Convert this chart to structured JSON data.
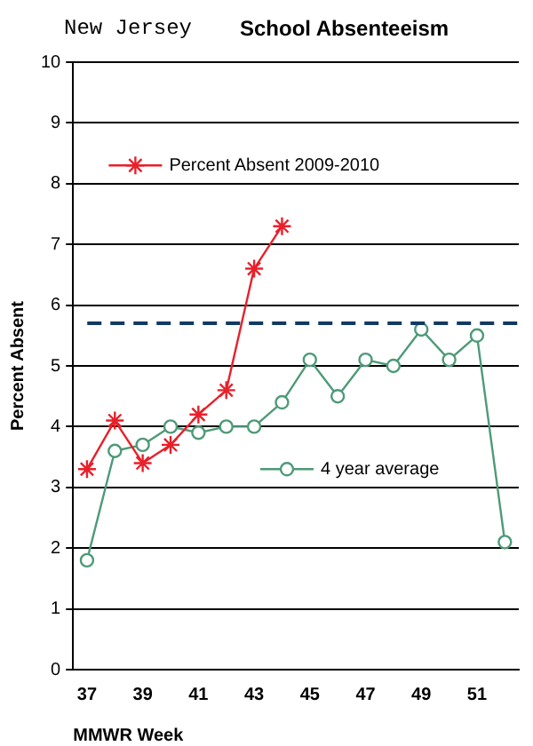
{
  "chart_data": {
    "type": "line",
    "title": "School Absenteeism",
    "subtitle": "New Jersey",
    "xlabel": "MMWR Week",
    "ylabel": "Percent Absent",
    "categories": [
      "37",
      null,
      "39",
      null,
      "41",
      null,
      "43",
      null,
      "45",
      null,
      "47",
      null,
      "49",
      null,
      "51",
      null
    ],
    "series": [
      {
        "name": "Percent Absent 2009-2010",
        "color": "#e8202a",
        "marker": "cross",
        "values": [
          3.3,
          4.1,
          3.4,
          3.7,
          4.2,
          4.6,
          6.6,
          7.3,
          null,
          null,
          null,
          null,
          null,
          null,
          null,
          null
        ]
      },
      {
        "name": "4 year average",
        "color": "#4e9a78",
        "marker": "circle",
        "values": [
          1.8,
          3.6,
          3.7,
          4.0,
          3.9,
          4.0,
          4.0,
          4.4,
          5.1,
          4.5,
          5.1,
          5.0,
          5.6,
          5.1,
          5.5,
          2.1
        ]
      }
    ],
    "ylim": [
      0,
      10
    ],
    "yticks": [
      0,
      1,
      2,
      3,
      4,
      5,
      6,
      7,
      8,
      9,
      10
    ],
    "grid": "y",
    "legend": "top left",
    "ref_lines": [
      {
        "axis": "y",
        "value": 5.7,
        "color": "#123a63",
        "line_style": "dashed"
      }
    ]
  }
}
